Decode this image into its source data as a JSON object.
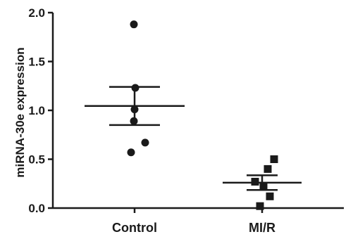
{
  "chart_data": {
    "type": "scatter",
    "subtype": "dot-plot-with-mean-and-sem",
    "title": "",
    "xlabel": "",
    "ylabel": "miRNA-30e expression",
    "ylim": [
      0,
      2.0
    ],
    "yticks": [
      "0.0",
      "0.5",
      "1.0",
      "1.5",
      "2.0"
    ],
    "categories": [
      "Control",
      "MI/R"
    ],
    "grid": false,
    "legend": "none",
    "color": "#1a1a1a",
    "groups": [
      {
        "category": "Control",
        "marker": "circle",
        "points": [
          1.88,
          1.23,
          1.01,
          0.89,
          0.67,
          0.57
        ],
        "mean": 1.045,
        "sem_upper": 1.24,
        "sem_lower": 0.85
      },
      {
        "category": "MI/R",
        "marker": "square",
        "points": [
          0.5,
          0.4,
          0.27,
          0.22,
          0.12,
          0.02
        ],
        "mean": 0.26,
        "sem_upper": 0.335,
        "sem_lower": 0.185
      }
    ]
  }
}
